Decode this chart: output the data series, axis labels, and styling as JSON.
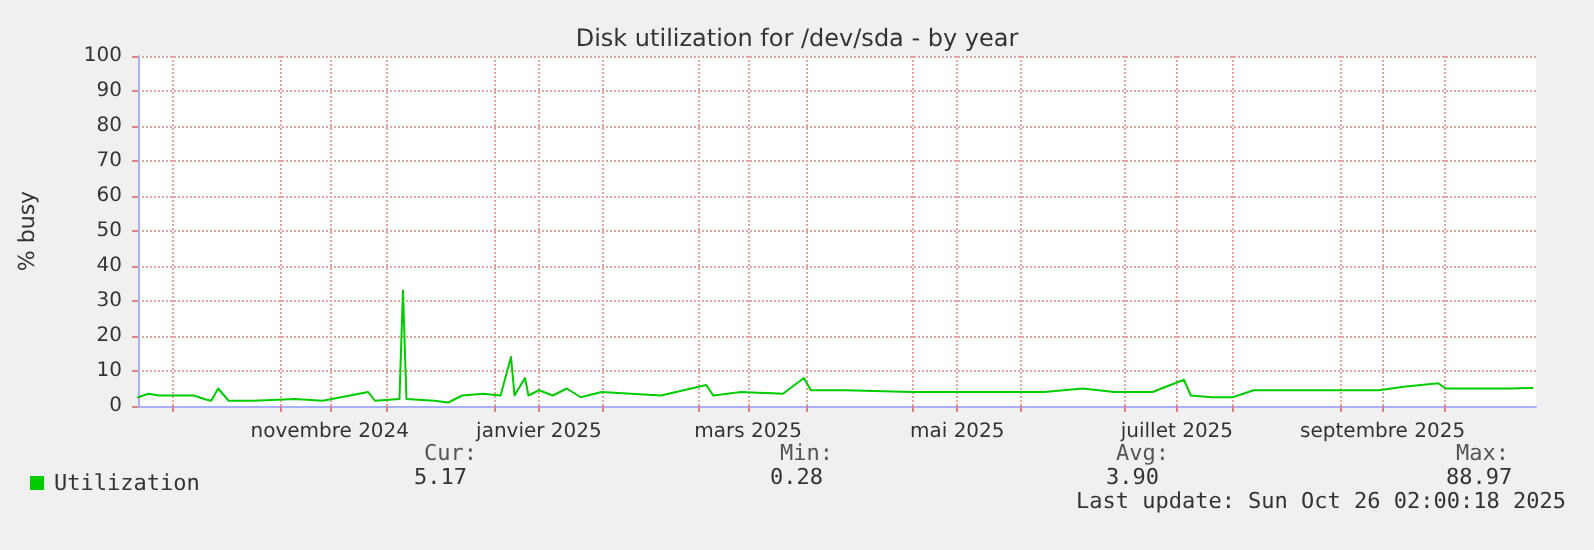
{
  "chart_data": {
    "type": "line",
    "title": "Disk utilization for /dev/sda - by year",
    "ylabel": "% busy",
    "xlim": [
      "2024-09-21",
      "2025-10-27"
    ],
    "ylim": [
      0,
      100
    ],
    "yticks": [
      0,
      10,
      20,
      30,
      40,
      50,
      60,
      70,
      80,
      90,
      100
    ],
    "xticks": [
      {
        "value": "2024-10-01",
        "label": null
      },
      {
        "value": "2024-11-01",
        "label": null
      },
      {
        "value": "2024-11-15",
        "label": "novembre 2024"
      },
      {
        "value": "2024-12-01",
        "label": null
      },
      {
        "value": "2025-01-01",
        "label": null
      },
      {
        "value": "2025-01-14",
        "label": "janvier 2025"
      },
      {
        "value": "2025-02-01",
        "label": null
      },
      {
        "value": "2025-03-01",
        "label": null
      },
      {
        "value": "2025-03-15",
        "label": "mars 2025"
      },
      {
        "value": "2025-04-01",
        "label": null
      },
      {
        "value": "2025-05-01",
        "label": null
      },
      {
        "value": "2025-05-14",
        "label": "mai 2025"
      },
      {
        "value": "2025-06-01",
        "label": null
      },
      {
        "value": "2025-07-01",
        "label": null
      },
      {
        "value": "2025-07-16",
        "label": "juillet 2025"
      },
      {
        "value": "2025-08-01",
        "label": null
      },
      {
        "value": "2025-09-01",
        "label": null
      },
      {
        "value": "2025-09-13",
        "label": "septembre 2025"
      },
      {
        "value": "2025-10-01",
        "label": null
      }
    ],
    "grid": true,
    "legend": "bottom left",
    "marker": "none",
    "line_style": "solid",
    "series": [
      {
        "name": "Utilization",
        "color": "#00cc00",
        "x": [
          "2024-09-21",
          "2024-09-24",
          "2024-09-27",
          "2024-10-07",
          "2024-10-10",
          "2024-10-12",
          "2024-10-14",
          "2024-10-17",
          "2024-10-24",
          "2024-11-05",
          "2024-11-13",
          "2024-11-26",
          "2024-11-28",
          "2024-12-05",
          "2024-12-06",
          "2024-12-07",
          "2024-12-15",
          "2024-12-19",
          "2024-12-23",
          "2024-12-29",
          "2025-01-03",
          "2025-01-06",
          "2025-01-07",
          "2025-01-10",
          "2025-01-11",
          "2025-01-14",
          "2025-01-18",
          "2025-01-22",
          "2025-01-26",
          "2025-02-01",
          "2025-02-18",
          "2025-03-03",
          "2025-03-05",
          "2025-03-13",
          "2025-03-25",
          "2025-03-31",
          "2025-04-02",
          "2025-04-12",
          "2025-05-01",
          "2025-05-20",
          "2025-06-08",
          "2025-06-19",
          "2025-06-28",
          "2025-07-09",
          "2025-07-18",
          "2025-07-20",
          "2025-07-26",
          "2025-08-01",
          "2025-08-07",
          "2025-08-24",
          "2025-09-12",
          "2025-09-19",
          "2025-09-29",
          "2025-10-01",
          "2025-10-20",
          "2025-10-26"
        ],
        "values": [
          2.5,
          3.5,
          3,
          3,
          2,
          1.5,
          5,
          1.5,
          1.5,
          2,
          1.5,
          4,
          1.5,
          2,
          33,
          2,
          1.5,
          1,
          3,
          3.5,
          3,
          14,
          3,
          8,
          3,
          4.5,
          3,
          5,
          2.5,
          4,
          3,
          6,
          3,
          4,
          3.5,
          8,
          4.5,
          4.5,
          4,
          4,
          4,
          5,
          4,
          4,
          7.5,
          3,
          2.5,
          2.5,
          4.5,
          4.5,
          4.5,
          5.5,
          6.5,
          5,
          5,
          5.17
        ]
      }
    ],
    "annotations": [
      "Cur:",
      "5.17",
      "Min:",
      "0.28",
      "Avg:",
      "3.90",
      "Max:",
      "88.97",
      "Last update: Sun Oct 26 02:00:18 2025"
    ]
  }
}
